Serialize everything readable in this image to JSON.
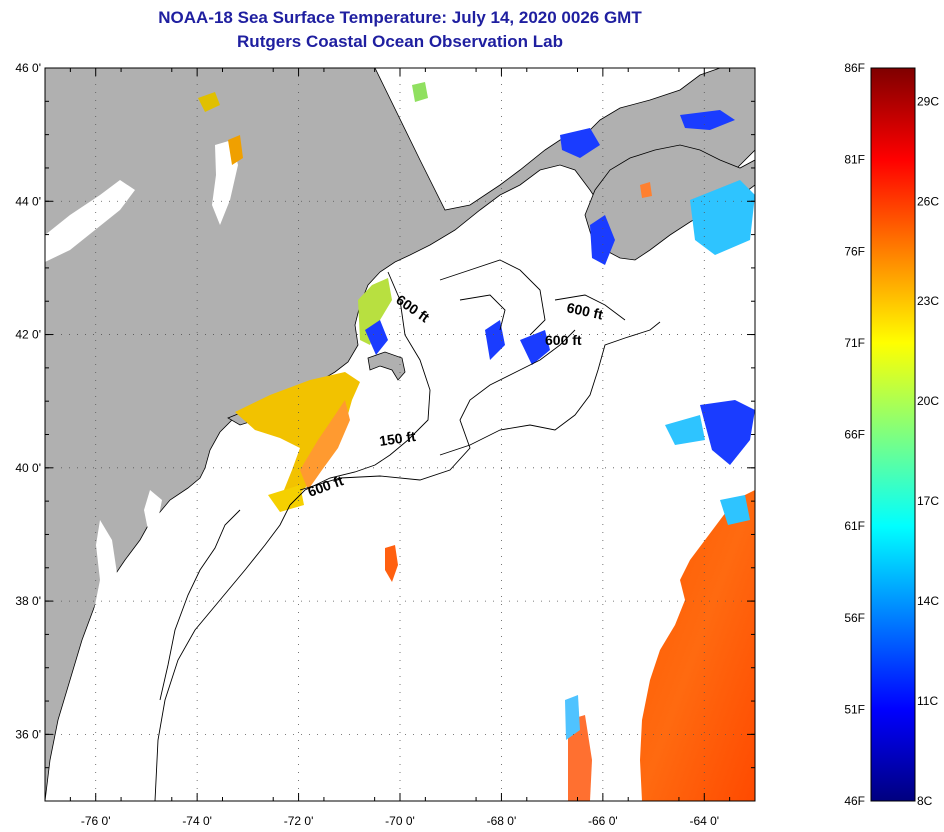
{
  "header": {
    "title_line1": "NOAA-18 Sea Surface Temperature:  July 14, 2020 0026 GMT",
    "title_line2": "Rutgers Coastal Ocean Observation Lab"
  },
  "map": {
    "latitude_labels": [
      "46 0'",
      "44 0'",
      "42 0'",
      "40 0'",
      "38 0'",
      "36 0'"
    ],
    "latitude_values": [
      46,
      44,
      42,
      40,
      38,
      36
    ],
    "longitude_labels": [
      "-76 0'",
      "-74 0'",
      "-72 0'",
      "-70 0'",
      "-68 0'",
      "-66 0'",
      "-64 0'"
    ],
    "longitude_values": [
      -76,
      -74,
      -72,
      -70,
      -68,
      -66,
      -64
    ],
    "contour_labels": [
      "600 ft",
      "600 ft",
      "600 ft",
      "150 ft",
      "600 ft"
    ],
    "colors": {
      "land": "#b0b0b0",
      "ocean_no_data": "#ffffff",
      "coastline": "#000000",
      "grid_dots": "#555555"
    }
  },
  "colorbar": {
    "fahrenheit_labels": [
      "86F",
      "81F",
      "76F",
      "71F",
      "66F",
      "61F",
      "56F",
      "51F",
      "46F"
    ],
    "celsius_labels": [
      "29C",
      "26C",
      "23C",
      "20C",
      "17C",
      "14C",
      "11C",
      "8C"
    ],
    "range_f": [
      46,
      86
    ],
    "range_c": [
      8,
      30
    ],
    "gradient_colors": [
      "#00007f",
      "#0000ff",
      "#007fff",
      "#00ffff",
      "#7fff7f",
      "#ffff00",
      "#ff7f00",
      "#ff0000",
      "#7f0000"
    ]
  }
}
